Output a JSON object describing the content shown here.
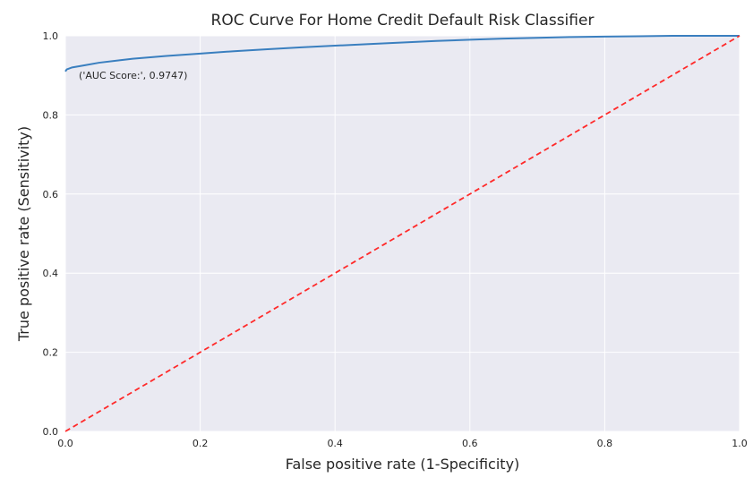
{
  "chart_data": {
    "type": "line",
    "title": "ROC Curve For Home Credit Default Risk Classifier",
    "xlabel": "False positive rate (1-Specificity)",
    "ylabel": "True positive rate (Sensitivity)",
    "xlim": [
      0.0,
      1.0
    ],
    "ylim": [
      0.0,
      1.0
    ],
    "grid": true,
    "x_ticks": [
      "0.0",
      "0.2",
      "0.4",
      "0.6",
      "0.8",
      "1.0"
    ],
    "y_ticks": [
      "0.0",
      "0.2",
      "0.4",
      "0.6",
      "0.8",
      "1.0"
    ],
    "annotation": "('AUC Score:', 0.9747)",
    "annotation_point": [
      0.02,
      0.9
    ],
    "series": [
      {
        "color": "#3a7fbf",
        "style": "solid",
        "x": [
          0.0,
          0.002,
          0.01,
          0.03,
          0.05,
          0.08,
          0.1,
          0.15,
          0.2,
          0.25,
          0.3,
          0.35,
          0.4,
          0.45,
          0.5,
          0.55,
          0.6,
          0.65,
          0.7,
          0.75,
          0.8,
          0.85,
          0.9,
          0.95,
          1.0
        ],
        "y": [
          0.91,
          0.915,
          0.92,
          0.926,
          0.932,
          0.938,
          0.942,
          0.949,
          0.955,
          0.961,
          0.966,
          0.971,
          0.975,
          0.979,
          0.983,
          0.987,
          0.99,
          0.993,
          0.995,
          0.997,
          0.998,
          0.999,
          1.0,
          1.0,
          1.0
        ]
      },
      {
        "color": "#ff2a2a",
        "style": "dashed",
        "x": [
          0.0,
          1.0
        ],
        "y": [
          0.0,
          1.0
        ]
      }
    ]
  }
}
